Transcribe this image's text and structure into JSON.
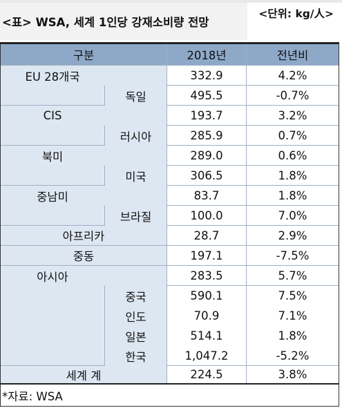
{
  "title": "<표> WSA, 세계 1인당 강재소비량 전망",
  "unit": "<단위: kg/人>",
  "columns": [
    "구분",
    "2018년",
    "전년비"
  ],
  "rows": [
    {
      "region": "EU 28개국",
      "value": "332.9",
      "change": "4.2%"
    },
    {
      "sub": "독일",
      "value": "495.5",
      "change": "-0.7%"
    },
    {
      "region": "CIS",
      "value": "193.7",
      "change": "3.2%"
    },
    {
      "sub": "러시아",
      "value": "285.9",
      "change": "0.7%"
    },
    {
      "region": "북미",
      "value": "289.0",
      "change": "0.6%"
    },
    {
      "sub": "미국",
      "value": "306.5",
      "change": "1.8%"
    },
    {
      "region": "중남미",
      "value": "83.7",
      "change": "1.8%"
    },
    {
      "sub": "브라질",
      "value": "100.0",
      "change": "7.0%"
    },
    {
      "region": "아프리카",
      "value": "28.7",
      "change": "2.9%"
    },
    {
      "region": "중동",
      "value": "197.1",
      "change": "-7.5%"
    },
    {
      "region": "아시아",
      "value": "283.5",
      "change": "5.7%"
    },
    {
      "sub": "중국",
      "value": "590.1",
      "change": "7.5%"
    },
    {
      "sub": "인도",
      "value": "70.9",
      "change": "7.1%"
    },
    {
      "sub": "일본",
      "value": "514.1",
      "change": "1.8%"
    },
    {
      "sub": "한국",
      "value": "1,047.2",
      "change": "-5.2%"
    },
    {
      "region": "세계 계",
      "value": "224.5",
      "change": "3.8%"
    }
  ],
  "note": "*자료: WSA"
}
